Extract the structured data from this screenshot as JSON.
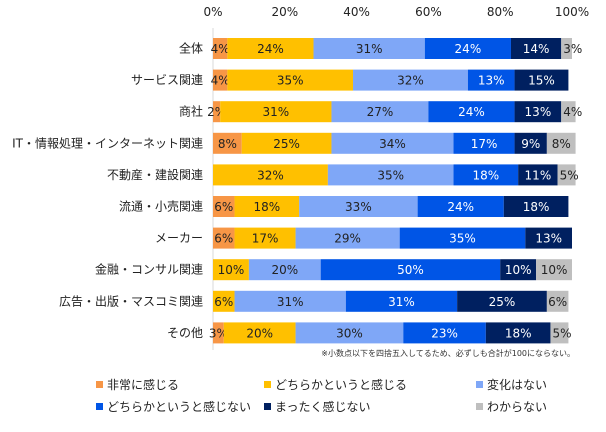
{
  "chart_data": {
    "type": "bar",
    "orientation": "horizontal",
    "stacked": true,
    "percent": true,
    "xlim": [
      0,
      100
    ],
    "x_ticks": [
      "0%",
      "20%",
      "40%",
      "60%",
      "80%",
      "100%"
    ],
    "categories": [
      "全体",
      "サービス関連",
      "商社",
      "IT・情報処理・インターネット関連",
      "不動産・建設関連",
      "流通・小売関連",
      "メーカー",
      "金融・コンサル関連",
      "広告・出版・マスコミ関連",
      "その他"
    ],
    "series": [
      {
        "name": "非常に感じる",
        "color": "#F79646",
        "label_color": "#222222",
        "values": [
          4,
          4,
          2,
          8,
          0,
          6,
          6,
          0,
          0,
          3
        ]
      },
      {
        "name": "どちらかというと感じる",
        "color": "#FFC000",
        "label_color": "#222222",
        "values": [
          24,
          35,
          31,
          25,
          32,
          18,
          17,
          10,
          6,
          20
        ]
      },
      {
        "name": "変化はない",
        "color": "#7FA7F7",
        "label_color": "#222222",
        "values": [
          31,
          32,
          27,
          34,
          35,
          33,
          29,
          20,
          31,
          30
        ]
      },
      {
        "name": "どちらかというと感じない",
        "color": "#0055E6",
        "label_color": "#ffffff",
        "values": [
          24,
          13,
          24,
          17,
          18,
          24,
          35,
          50,
          31,
          23
        ]
      },
      {
        "name": "まったく感じない",
        "color": "#002060",
        "label_color": "#ffffff",
        "values": [
          14,
          15,
          13,
          9,
          11,
          18,
          13,
          10,
          25,
          18
        ]
      },
      {
        "name": "わからない",
        "color": "#BFBFBF",
        "label_color": "#222222",
        "values": [
          3,
          0,
          4,
          8,
          5,
          0,
          0,
          10,
          6,
          5
        ]
      }
    ],
    "note": "※小数点以下を四捨五入してるため、必ずしも合計が100にならない。",
    "legend_position": "bottom"
  }
}
